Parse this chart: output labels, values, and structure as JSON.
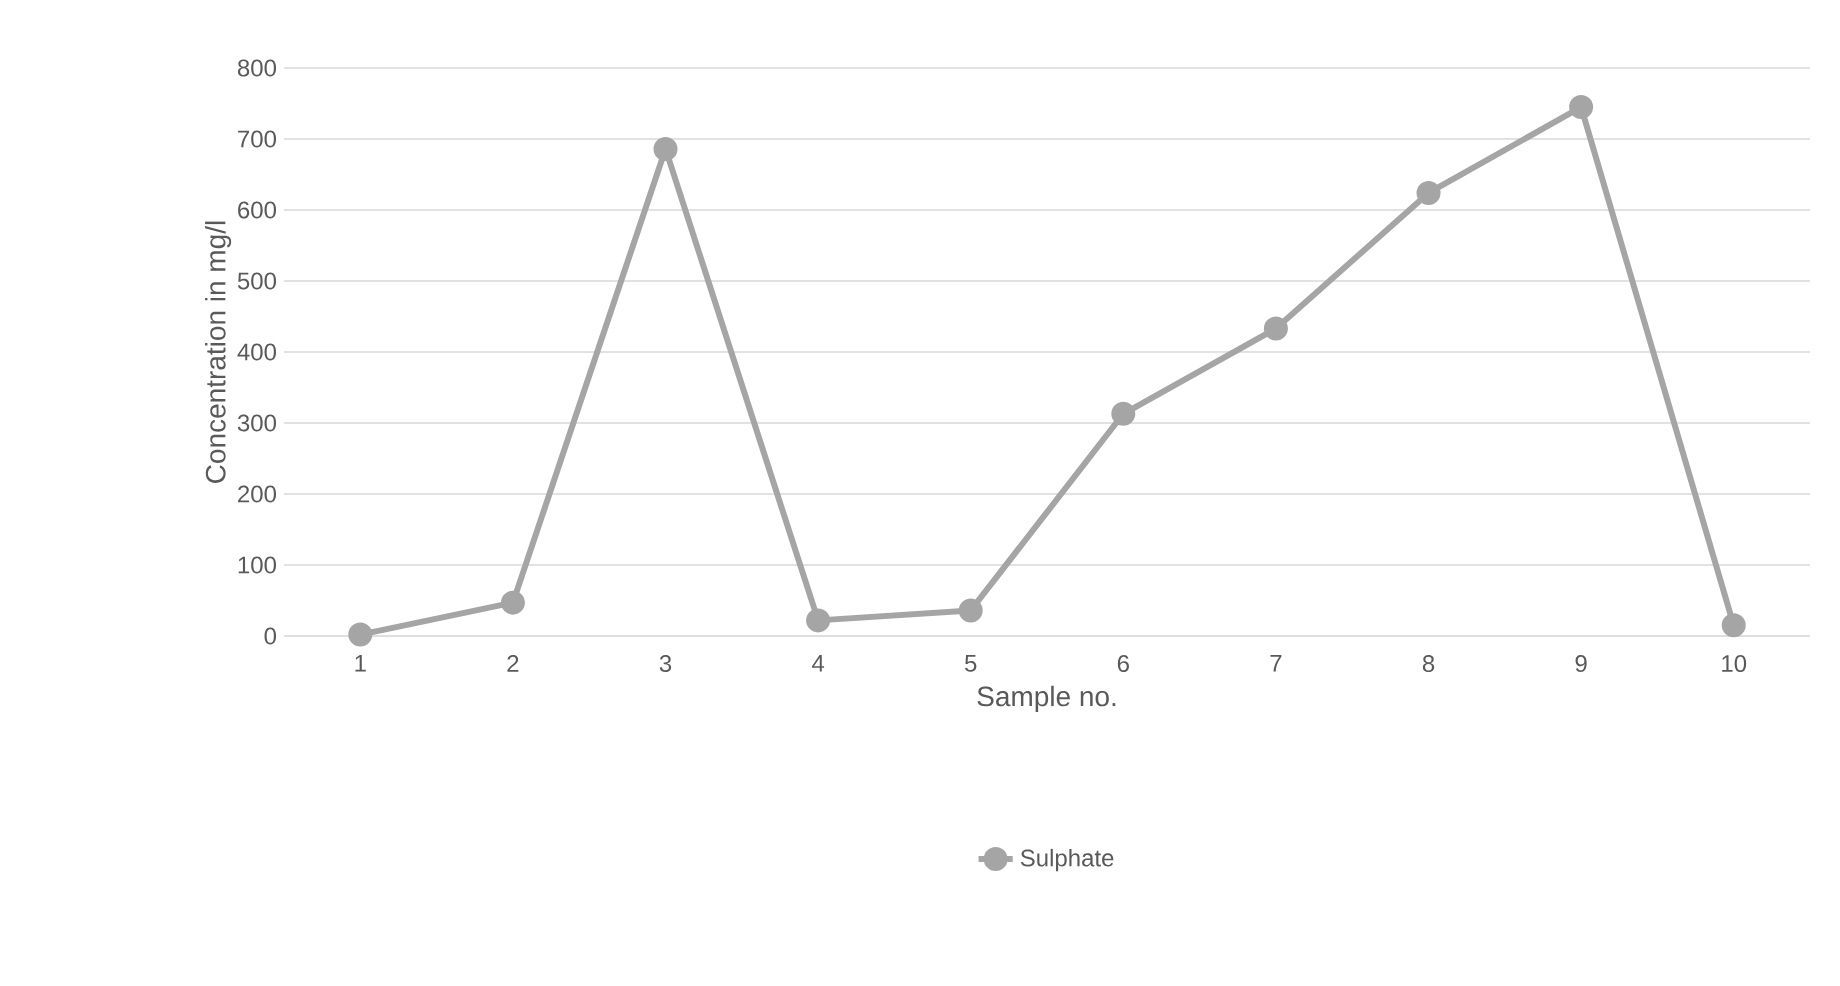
{
  "chart_data": {
    "type": "line",
    "xlabel": "Sample no.",
    "ylabel": "Concentration in mg/l",
    "categories": [
      "1",
      "2",
      "3",
      "4",
      "5",
      "6",
      "7",
      "8",
      "9",
      "10"
    ],
    "series": [
      {
        "name": "Sulphate",
        "color": "#a5a5a5",
        "values": [
          2,
          47,
          686,
          22,
          36,
          313,
          433,
          624,
          745,
          15
        ]
      }
    ],
    "ylim": [
      0,
      800
    ],
    "yticks": [
      0,
      100,
      200,
      300,
      400,
      500,
      600,
      700,
      800
    ],
    "grid": "y",
    "legend": "bottom",
    "marker": "circle",
    "line_style": "solid"
  }
}
